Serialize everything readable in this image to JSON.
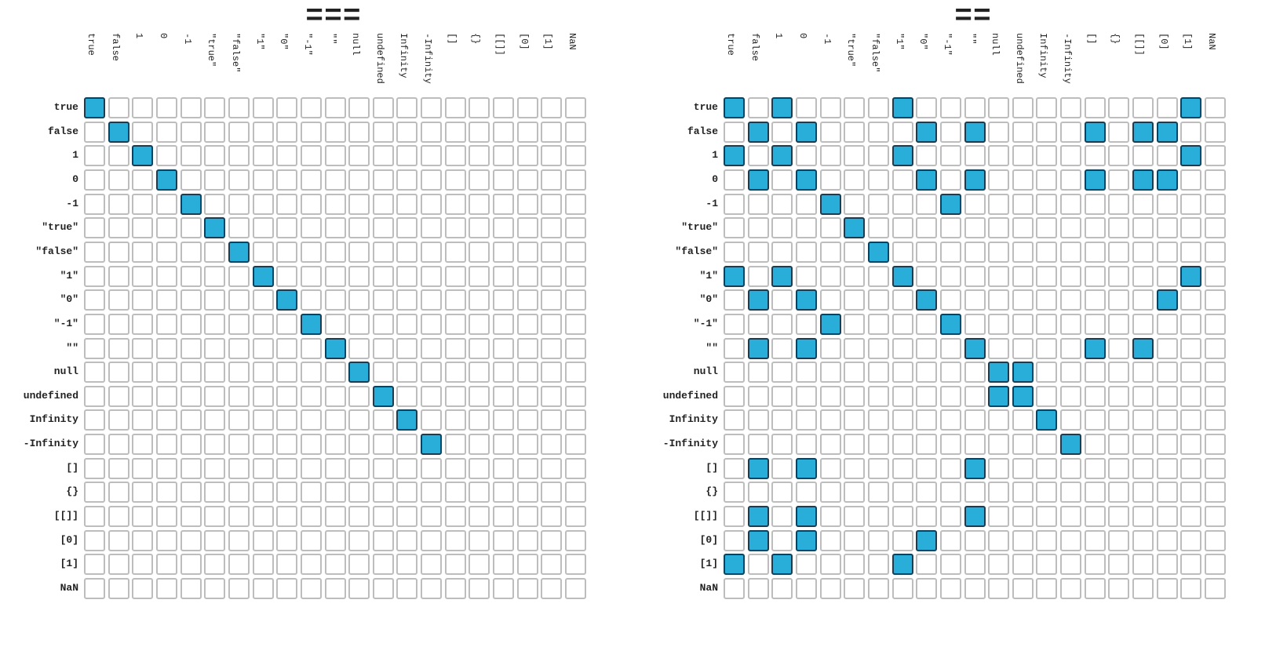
{
  "labels": [
    "true",
    "false",
    "1",
    "0",
    "-1",
    "\"true\"",
    "\"false\"",
    "\"1\"",
    "\"0\"",
    "\"-1\"",
    "\"\"",
    "null",
    "undefined",
    "Infinity",
    "-Infinity",
    "[]",
    "{}",
    "[[]]",
    "[0]",
    "[1]",
    "NaN"
  ],
  "tables": [
    {
      "title": "===",
      "matches": [
        [
          0,
          0
        ],
        [
          1,
          1
        ],
        [
          2,
          2
        ],
        [
          3,
          3
        ],
        [
          4,
          4
        ],
        [
          5,
          5
        ],
        [
          6,
          6
        ],
        [
          7,
          7
        ],
        [
          8,
          8
        ],
        [
          9,
          9
        ],
        [
          10,
          10
        ],
        [
          11,
          11
        ],
        [
          12,
          12
        ],
        [
          13,
          13
        ],
        [
          14,
          14
        ]
      ]
    },
    {
      "title": "==",
      "matches": [
        [
          0,
          0
        ],
        [
          0,
          2
        ],
        [
          0,
          7
        ],
        [
          0,
          19
        ],
        [
          1,
          1
        ],
        [
          1,
          3
        ],
        [
          1,
          8
        ],
        [
          1,
          10
        ],
        [
          1,
          15
        ],
        [
          1,
          17
        ],
        [
          1,
          18
        ],
        [
          2,
          0
        ],
        [
          2,
          2
        ],
        [
          2,
          7
        ],
        [
          2,
          19
        ],
        [
          3,
          1
        ],
        [
          3,
          3
        ],
        [
          3,
          8
        ],
        [
          3,
          10
        ],
        [
          3,
          15
        ],
        [
          3,
          17
        ],
        [
          3,
          18
        ],
        [
          4,
          4
        ],
        [
          4,
          9
        ],
        [
          5,
          5
        ],
        [
          6,
          6
        ],
        [
          7,
          0
        ],
        [
          7,
          2
        ],
        [
          7,
          7
        ],
        [
          7,
          19
        ],
        [
          8,
          1
        ],
        [
          8,
          3
        ],
        [
          8,
          8
        ],
        [
          8,
          18
        ],
        [
          9,
          4
        ],
        [
          9,
          9
        ],
        [
          10,
          1
        ],
        [
          10,
          3
        ],
        [
          10,
          10
        ],
        [
          10,
          15
        ],
        [
          10,
          17
        ],
        [
          11,
          11
        ],
        [
          11,
          12
        ],
        [
          12,
          11
        ],
        [
          12,
          12
        ],
        [
          13,
          13
        ],
        [
          14,
          14
        ],
        [
          15,
          1
        ],
        [
          15,
          3
        ],
        [
          15,
          10
        ],
        [
          17,
          1
        ],
        [
          17,
          3
        ],
        [
          17,
          10
        ],
        [
          18,
          1
        ],
        [
          18,
          3
        ],
        [
          18,
          8
        ],
        [
          19,
          0
        ],
        [
          19,
          2
        ],
        [
          19,
          7
        ]
      ]
    }
  ]
}
